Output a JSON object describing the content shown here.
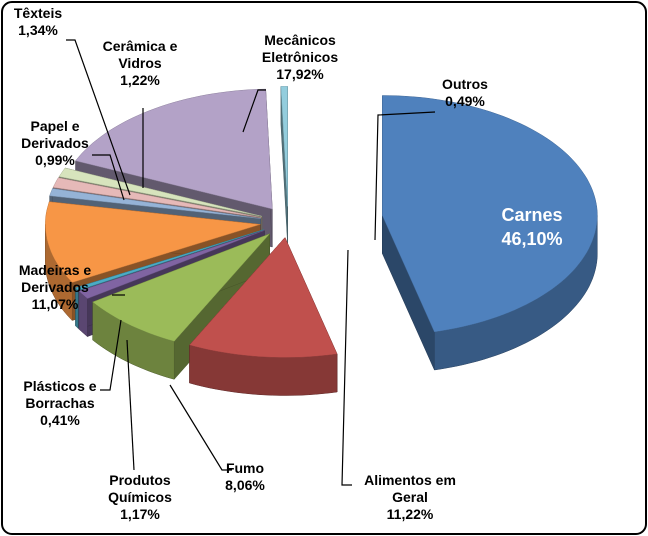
{
  "chart_data": {
    "type": "pie3d",
    "categories": [
      "Carnes",
      "Alimentos em\nGeral",
      "Fumo",
      "Produtos\nQuímicos",
      "Plásticos e\nBorrachas",
      "Madeiras e\nDerivados",
      "Papel e\nDerivados",
      "Têxteis",
      "Cerâmica e\nVidros",
      "Mecânicos\nEletrônicos",
      "Outros"
    ],
    "values": [
      46.1,
      11.22,
      8.06,
      1.17,
      0.41,
      11.07,
      0.99,
      1.34,
      1.22,
      17.92,
      0.49
    ],
    "value_labels": [
      "46,10%",
      "11,22%",
      "8,06%",
      "1,17%",
      "0,41%",
      "11,07%",
      "0,99%",
      "1,34%",
      "1,22%",
      "17,92%",
      "0,49%"
    ],
    "colors": [
      "#4f81bd",
      "#c0504d",
      "#9bbb59",
      "#8064a2",
      "#4bacc6",
      "#f79646",
      "#95b3d7",
      "#e6b9b8",
      "#d7e4bd",
      "#b3a2c7",
      "#93cddd"
    ]
  }
}
